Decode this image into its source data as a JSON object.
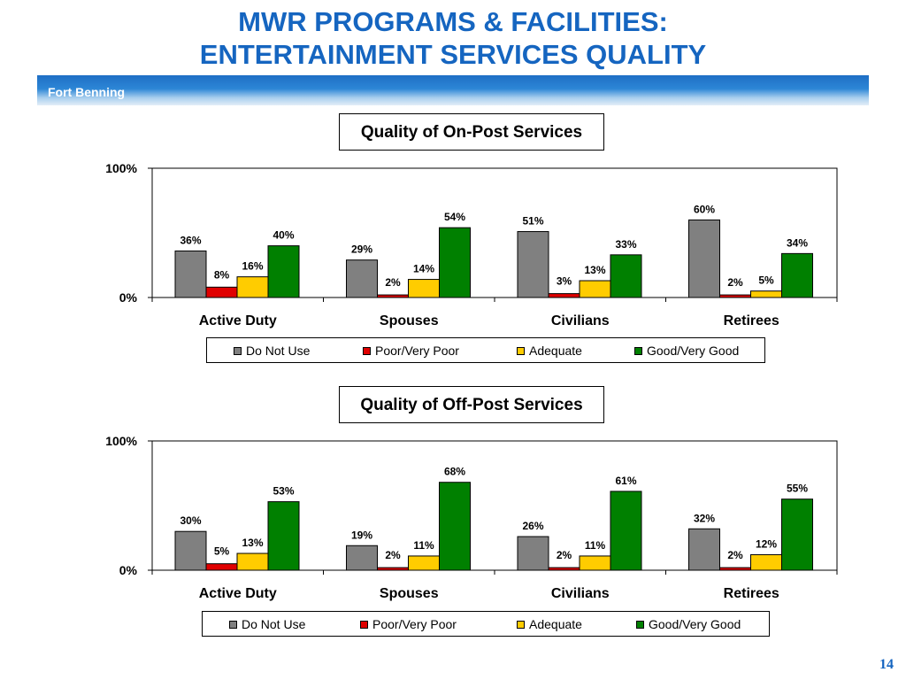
{
  "header": {
    "title_line1": "MWR PROGRAMS & FACILITIES:",
    "title_line2": "ENTERTAINMENT SERVICES QUALITY",
    "subtitle": "Fort Benning",
    "page_number": "14"
  },
  "colors": {
    "title": "#1565c0",
    "banner": "#2c86d6",
    "Do Not Use": "#808080",
    "Poor/Very Poor": "#e00000",
    "Adequate": "#ffcc00",
    "Good/Very Good": "#008000"
  },
  "chart_data": [
    {
      "type": "bar",
      "title": "Quality of On-Post Services",
      "categories": [
        "Active Duty",
        "Spouses",
        "Civilians",
        "Retirees"
      ],
      "ylim": [
        0,
        100
      ],
      "yticks": [
        "0%",
        "100%"
      ],
      "legend_position": "bottom",
      "series": [
        {
          "name": "Do Not Use",
          "values": [
            36,
            29,
            51,
            60
          ]
        },
        {
          "name": "Poor/Very Poor",
          "values": [
            8,
            2,
            3,
            2
          ]
        },
        {
          "name": "Adequate",
          "values": [
            16,
            14,
            13,
            5
          ]
        },
        {
          "name": "Good/Very Good",
          "values": [
            40,
            54,
            33,
            34
          ]
        }
      ]
    },
    {
      "type": "bar",
      "title": "Quality of Off-Post Services",
      "categories": [
        "Active Duty",
        "Spouses",
        "Civilians",
        "Retirees"
      ],
      "ylim": [
        0,
        100
      ],
      "yticks": [
        "0%",
        "100%"
      ],
      "legend_position": "bottom",
      "series": [
        {
          "name": "Do Not Use",
          "values": [
            30,
            19,
            26,
            32
          ]
        },
        {
          "name": "Poor/Very Poor",
          "values": [
            5,
            2,
            2,
            2
          ]
        },
        {
          "name": "Adequate",
          "values": [
            13,
            11,
            11,
            12
          ]
        },
        {
          "name": "Good/Very Good",
          "values": [
            53,
            68,
            61,
            55
          ]
        }
      ]
    }
  ]
}
